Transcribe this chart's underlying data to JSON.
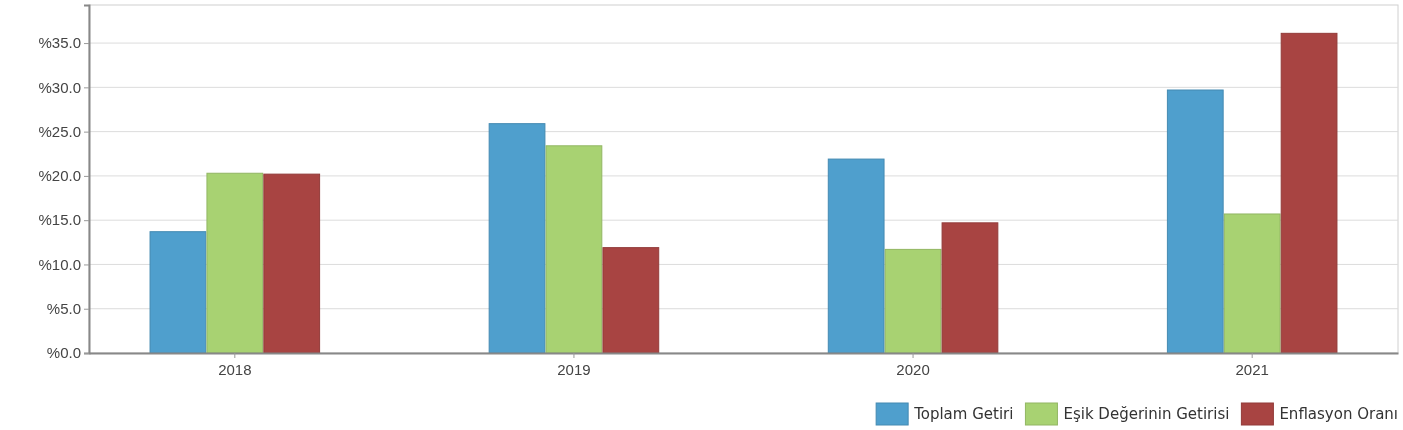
{
  "chart_data": {
    "type": "bar",
    "categories": [
      "2018",
      "2019",
      "2020",
      "2021"
    ],
    "series": [
      {
        "name": "Toplam Getiri",
        "color": "#4f9fcd",
        "values": [
          13.7,
          25.9,
          21.9,
          29.7
        ]
      },
      {
        "name": "Eşik Değerinin Getirisi",
        "color": "#a8d272",
        "values": [
          20.3,
          23.4,
          11.7,
          15.7
        ]
      },
      {
        "name": "Enflasyon Oranı",
        "color": "#a84442",
        "values": [
          20.2,
          11.9,
          14.7,
          36.1
        ]
      }
    ],
    "ylim": [
      0,
      39.3
    ],
    "yticks": [
      {
        "value": 0,
        "label": "%0.0"
      },
      {
        "value": 5,
        "label": "%5.0"
      },
      {
        "value": 10,
        "label": "%10.0"
      },
      {
        "value": 15,
        "label": "%15.0"
      },
      {
        "value": 20,
        "label": "%20.0"
      },
      {
        "value": 25,
        "label": "%25.0"
      },
      {
        "value": 30,
        "label": "%30.0"
      },
      {
        "value": 35,
        "label": "%35.0"
      }
    ],
    "grid": "y",
    "legend": "bottom right"
  }
}
